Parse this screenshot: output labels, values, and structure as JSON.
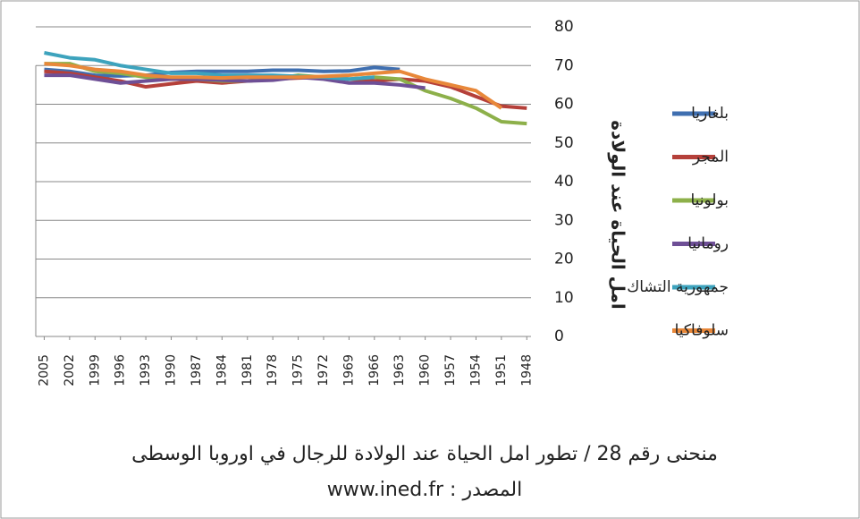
{
  "chart_data": {
    "type": "line",
    "title": "منحنى رقم 28 / تطور امل الحياة عند الولادة للرجال في اوروبا الوسطى",
    "subtitle": "www.ined.fr : المصدر",
    "y_label": "امل الحياة عند الولادة",
    "x": [
      2005,
      2002,
      1999,
      1996,
      1993,
      1990,
      1987,
      1984,
      1981,
      1978,
      1975,
      1972,
      1969,
      1966,
      1963,
      1960,
      1957,
      1954,
      1951,
      1948
    ],
    "xlim": [
      2006,
      1947.5
    ],
    "xticks": [
      2005,
      2002,
      1999,
      1996,
      1993,
      1990,
      1987,
      1984,
      1981,
      1978,
      1975,
      1972,
      1969,
      1966,
      1963,
      1960,
      1957,
      1954,
      1951,
      1948
    ],
    "ylim": [
      0,
      80
    ],
    "yticks": [
      0,
      10,
      20,
      30,
      40,
      50,
      60,
      70,
      80
    ],
    "grid": true,
    "legend": "right",
    "series": [
      {
        "name": "بلغاريا",
        "color": "#3f6fb0",
        "values": [
          69,
          68.5,
          67.5,
          67.3,
          67.5,
          68.2,
          68.5,
          68.5,
          68.5,
          68.8,
          68.8,
          68.5,
          68.6,
          69.5,
          69,
          null,
          null,
          null,
          null,
          null
        ]
      },
      {
        "name": "المجر",
        "color": "#b5403a",
        "values": [
          68.5,
          68,
          67,
          66,
          64.5,
          65.3,
          66,
          65.5,
          66,
          66.5,
          66.8,
          67,
          66.5,
          66,
          66.5,
          66,
          64.5,
          62,
          59.5,
          59
        ]
      },
      {
        "name": "بولونيا",
        "color": "#8db04a",
        "values": [
          70.5,
          70.5,
          68.5,
          68,
          67,
          66.5,
          66.5,
          66,
          66,
          66.5,
          67.5,
          67,
          66.5,
          67,
          66.5,
          63.5,
          61.5,
          59,
          55.5,
          55
        ]
      },
      {
        "name": "رومانيا",
        "color": "#6e4f96",
        "values": [
          67.5,
          67.5,
          66.5,
          65.5,
          66,
          66.5,
          66.5,
          66.2,
          66,
          66.2,
          67,
          66.5,
          65.5,
          65.5,
          65,
          64.2,
          null,
          null,
          null,
          null
        ]
      },
      {
        "name": "جمهورية التشاك",
        "color": "#3da3bd",
        "values": [
          73.3,
          72,
          71.5,
          70,
          69,
          68,
          68,
          67.5,
          67.5,
          67.5,
          67.2,
          67,
          66.5,
          67,
          null,
          null,
          null,
          null,
          null,
          null
        ]
      },
      {
        "name": "سلوفاكيا",
        "color": "#e8883a",
        "values": [
          70.5,
          70,
          69,
          68.5,
          67.5,
          67,
          67,
          66.8,
          67,
          67,
          67,
          67.2,
          67.5,
          68,
          68.5,
          66.5,
          65,
          63.5,
          59,
          null
        ]
      }
    ]
  }
}
